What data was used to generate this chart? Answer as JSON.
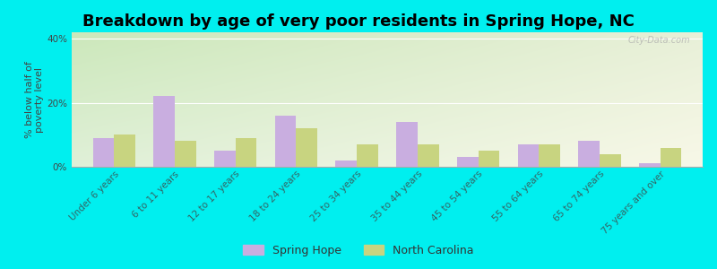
{
  "title": "Breakdown by age of very poor residents in Spring Hope, NC",
  "ylabel": "% below half of\npoverty level",
  "categories": [
    "Under 6 years",
    "6 to 11 years",
    "12 to 17 years",
    "18 to 24 years",
    "25 to 34 years",
    "35 to 44 years",
    "45 to 54 years",
    "55 to 64 years",
    "65 to 74 years",
    "75 years and over"
  ],
  "spring_hope": [
    9,
    22,
    5,
    16,
    2,
    14,
    3,
    7,
    8,
    1
  ],
  "north_carolina": [
    10,
    8,
    9,
    12,
    7,
    7,
    5,
    7,
    4,
    6
  ],
  "bar_color_sh": "#c9aee0",
  "bar_color_nc": "#c8d480",
  "background_outer": "#00efef",
  "ylim": [
    0,
    42
  ],
  "yticks": [
    0,
    20,
    40
  ],
  "ytick_labels": [
    "0%",
    "20%",
    "40%"
  ],
  "title_fontsize": 13,
  "axis_label_fontsize": 8,
  "tick_label_fontsize": 7.5,
  "legend_label_sh": "Spring Hope",
  "legend_label_nc": "North Carolina",
  "watermark": "City-Data.com",
  "grad_top_left": "#c8e6c0",
  "grad_top_right": "#e8f0d0",
  "grad_bottom_left": "#dff0d8",
  "grad_bottom_right": "#f5f5e0"
}
